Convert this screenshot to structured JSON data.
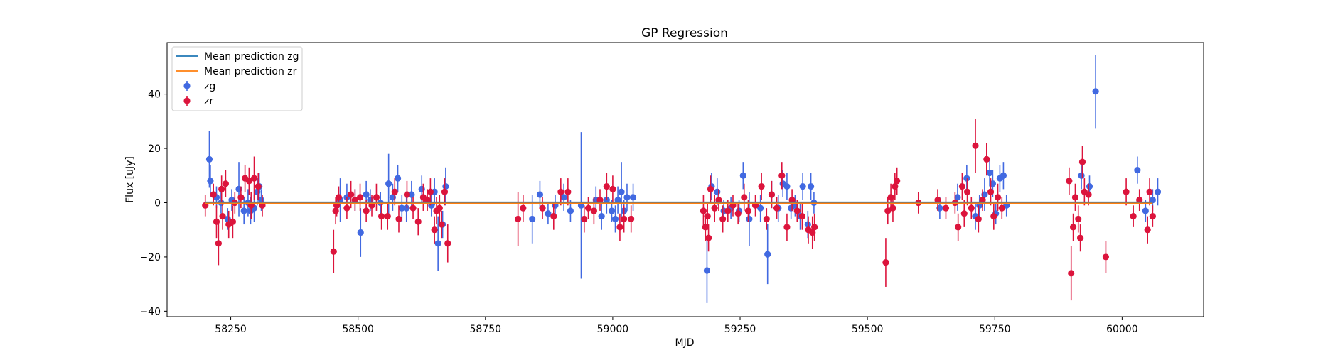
{
  "chart_data": {
    "type": "scatter",
    "title": "GP Regression",
    "xlabel": "MJD",
    "ylabel": "Flux [uJy]",
    "xlim": [
      58125,
      60160
    ],
    "ylim": [
      -42,
      59
    ],
    "xticks": [
      58250,
      58500,
      58750,
      59000,
      59250,
      59500,
      59750,
      60000
    ],
    "yticks": [
      -40,
      -20,
      0,
      20,
      40
    ],
    "grid": false,
    "legend": {
      "placement": "top-left",
      "entries": [
        {
          "label": "Mean prediction zg",
          "kind": "line",
          "color": "#1f77b4"
        },
        {
          "label": "Mean prediction zr",
          "kind": "line",
          "color": "#ff7f0e"
        },
        {
          "label": "zg",
          "kind": "errorbar",
          "color": "#4169e1"
        },
        {
          "label": "zr",
          "kind": "errorbar",
          "color": "#dc143c"
        }
      ]
    },
    "mean_lines": [
      {
        "name": "Mean prediction zg",
        "color": "#1f77b4",
        "x": [
          58200,
          60060
        ],
        "y": [
          0.2,
          0.2
        ]
      },
      {
        "name": "Mean prediction zr",
        "color": "#ff7f0e",
        "x": [
          58200,
          60060
        ],
        "y": [
          -0.2,
          -0.2
        ]
      }
    ],
    "series": [
      {
        "name": "zg",
        "color": "#4169e1",
        "points": [
          [
            58208,
            16,
            10.5
          ],
          [
            58210,
            8,
            6
          ],
          [
            58222,
            2,
            4
          ],
          [
            58231,
            0,
            4
          ],
          [
            58244,
            -6,
            4
          ],
          [
            58252,
            1,
            4
          ],
          [
            58266,
            5,
            10
          ],
          [
            58276,
            -3,
            5
          ],
          [
            58284,
            0,
            5
          ],
          [
            58289,
            -3,
            5
          ],
          [
            58296,
            -2,
            5
          ],
          [
            58302,
            4,
            5
          ],
          [
            58306,
            6,
            5
          ],
          [
            58310,
            1,
            4
          ],
          [
            58465,
            1,
            8
          ],
          [
            58478,
            2,
            5
          ],
          [
            58494,
            1,
            4
          ],
          [
            58505,
            -11,
            9
          ],
          [
            58516,
            3,
            5
          ],
          [
            58524,
            1,
            4
          ],
          [
            58544,
            0,
            4
          ],
          [
            58560,
            7,
            11
          ],
          [
            58568,
            2,
            5
          ],
          [
            58578,
            9,
            5
          ],
          [
            58586,
            -2,
            5
          ],
          [
            58595,
            -2,
            5
          ],
          [
            58605,
            3,
            5
          ],
          [
            58625,
            5,
            5
          ],
          [
            58644,
            -1,
            4
          ],
          [
            58650,
            4,
            5
          ],
          [
            58657,
            -15,
            10
          ],
          [
            58666,
            -8,
            5
          ],
          [
            58672,
            6,
            7
          ],
          [
            58842,
            -6,
            9
          ],
          [
            58857,
            3,
            5
          ],
          [
            58873,
            -4,
            4
          ],
          [
            58887,
            -1,
            4
          ],
          [
            58904,
            2,
            5
          ],
          [
            58917,
            -3,
            4
          ],
          [
            58938,
            -1,
            27
          ],
          [
            58967,
            1,
            5
          ],
          [
            58978,
            -5,
            5
          ],
          [
            58988,
            1,
            5
          ],
          [
            58998,
            -3,
            4
          ],
          [
            59005,
            -6,
            5
          ],
          [
            59010,
            1,
            5
          ],
          [
            59017,
            4,
            11
          ],
          [
            59022,
            -3,
            4
          ],
          [
            59028,
            2,
            5
          ],
          [
            59040,
            2,
            5
          ],
          [
            59185,
            -25,
            12
          ],
          [
            59194,
            6,
            5
          ],
          [
            59205,
            4,
            5
          ],
          [
            59218,
            -3,
            4
          ],
          [
            59232,
            -2,
            4
          ],
          [
            59248,
            -3,
            4
          ],
          [
            59256,
            10,
            5
          ],
          [
            59268,
            -6,
            10
          ],
          [
            59290,
            -2,
            5
          ],
          [
            59304,
            -19,
            11
          ],
          [
            59312,
            3,
            5
          ],
          [
            59325,
            -2,
            5
          ],
          [
            59334,
            7,
            5
          ],
          [
            59342,
            6,
            5
          ],
          [
            59350,
            -2,
            4
          ],
          [
            59358,
            -1,
            4
          ],
          [
            59368,
            -5,
            5
          ],
          [
            59373,
            6,
            5
          ],
          [
            59383,
            -8,
            5
          ],
          [
            59389,
            6,
            5
          ],
          [
            59395,
            0,
            4
          ],
          [
            59642,
            -2,
            4
          ],
          [
            59677,
            2,
            5
          ],
          [
            59695,
            9,
            5
          ],
          [
            59712,
            -5,
            5
          ],
          [
            59720,
            -1,
            4
          ],
          [
            59730,
            3,
            6
          ],
          [
            59740,
            11,
            5
          ],
          [
            59746,
            7,
            5
          ],
          [
            59752,
            -4,
            4
          ],
          [
            59760,
            9,
            5
          ],
          [
            59767,
            10,
            5
          ],
          [
            59773,
            -1,
            4
          ],
          [
            59920,
            10,
            5
          ],
          [
            59936,
            6,
            4
          ],
          [
            59948,
            41,
            13.5
          ],
          [
            60030,
            12,
            5
          ],
          [
            60046,
            -3,
            4
          ],
          [
            60060,
            1,
            4
          ],
          [
            60070,
            4,
            5
          ]
        ]
      },
      {
        "name": "zr",
        "color": "#dc143c",
        "points": [
          [
            58200,
            -1,
            4
          ],
          [
            58216,
            3,
            4
          ],
          [
            58222,
            -7,
            6
          ],
          [
            58226,
            -15,
            8
          ],
          [
            58232,
            5,
            5
          ],
          [
            58234,
            -5,
            5
          ],
          [
            58240,
            7,
            5
          ],
          [
            58246,
            -8,
            5
          ],
          [
            58254,
            -7,
            6
          ],
          [
            58258,
            0,
            4
          ],
          [
            58270,
            2,
            4
          ],
          [
            58278,
            9,
            5
          ],
          [
            58286,
            8,
            5
          ],
          [
            58290,
            -1,
            5
          ],
          [
            58296,
            9,
            8
          ],
          [
            58304,
            6,
            5
          ],
          [
            58312,
            -1,
            4
          ],
          [
            58452,
            -18,
            8
          ],
          [
            58456,
            -3,
            5
          ],
          [
            58458,
            -1,
            4
          ],
          [
            58462,
            2,
            4
          ],
          [
            58478,
            -2,
            4
          ],
          [
            58486,
            3,
            5
          ],
          [
            58494,
            1,
            4
          ],
          [
            58504,
            2,
            5
          ],
          [
            58516,
            -3,
            4
          ],
          [
            58527,
            -1,
            4
          ],
          [
            58536,
            2,
            5
          ],
          [
            58546,
            -5,
            5
          ],
          [
            58558,
            -5,
            5
          ],
          [
            58572,
            4,
            5
          ],
          [
            58580,
            -6,
            5
          ],
          [
            58596,
            3,
            5
          ],
          [
            58608,
            -2,
            4
          ],
          [
            58618,
            -7,
            5
          ],
          [
            58628,
            2,
            5
          ],
          [
            58636,
            1,
            4
          ],
          [
            58642,
            4,
            5
          ],
          [
            58650,
            -10,
            5
          ],
          [
            58654,
            -3,
            5
          ],
          [
            58660,
            -2,
            5
          ],
          [
            58664,
            -8,
            5
          ],
          [
            58670,
            4,
            5
          ],
          [
            58676,
            -15,
            7
          ],
          [
            58814,
            -6,
            10
          ],
          [
            58824,
            -2,
            5
          ],
          [
            58862,
            -2,
            4
          ],
          [
            58884,
            -5,
            5
          ],
          [
            58898,
            4,
            5
          ],
          [
            58912,
            4,
            5
          ],
          [
            58944,
            -6,
            5
          ],
          [
            58952,
            -2,
            4
          ],
          [
            58963,
            -3,
            5
          ],
          [
            58975,
            1,
            4
          ],
          [
            58988,
            6,
            5
          ],
          [
            59000,
            5,
            5
          ],
          [
            59014,
            -9,
            5
          ],
          [
            59022,
            -6,
            5
          ],
          [
            59036,
            -6,
            5
          ],
          [
            59178,
            -3,
            6
          ],
          [
            59182,
            -9,
            5
          ],
          [
            59186,
            -5,
            5
          ],
          [
            59188,
            -13,
            5
          ],
          [
            59192,
            5,
            5
          ],
          [
            59200,
            -2,
            5
          ],
          [
            59208,
            1,
            4
          ],
          [
            59216,
            -6,
            5
          ],
          [
            59226,
            -3,
            4
          ],
          [
            59236,
            -1,
            4
          ],
          [
            59246,
            -4,
            4
          ],
          [
            59258,
            2,
            5
          ],
          [
            59266,
            -3,
            4
          ],
          [
            59280,
            -1,
            4
          ],
          [
            59292,
            6,
            5
          ],
          [
            59302,
            -6,
            4
          ],
          [
            59312,
            3,
            5
          ],
          [
            59322,
            -2,
            4
          ],
          [
            59332,
            10,
            5
          ],
          [
            59342,
            -9,
            5
          ],
          [
            59352,
            1,
            4
          ],
          [
            59362,
            -3,
            4
          ],
          [
            59372,
            -5,
            5
          ],
          [
            59384,
            -10,
            5
          ],
          [
            59392,
            -11,
            6
          ],
          [
            59396,
            -9,
            5
          ],
          [
            59536,
            -22,
            9
          ],
          [
            59540,
            -3,
            5
          ],
          [
            59546,
            2,
            5
          ],
          [
            59550,
            -2,
            5
          ],
          [
            59554,
            6,
            5
          ],
          [
            59558,
            8,
            5
          ],
          [
            59600,
            0,
            4
          ],
          [
            59638,
            1,
            4
          ],
          [
            59654,
            -2,
            4
          ],
          [
            59672,
            0,
            4
          ],
          [
            59678,
            -9,
            5
          ],
          [
            59686,
            6,
            5
          ],
          [
            59690,
            -4,
            5
          ],
          [
            59696,
            4,
            5
          ],
          [
            59704,
            -2,
            4
          ],
          [
            59712,
            21,
            10
          ],
          [
            59718,
            -6,
            5
          ],
          [
            59726,
            1,
            4
          ],
          [
            59734,
            16,
            6
          ],
          [
            59742,
            4,
            5
          ],
          [
            59748,
            -5,
            5
          ],
          [
            59756,
            2,
            5
          ],
          [
            59764,
            -2,
            4
          ],
          [
            59896,
            8,
            5
          ],
          [
            59900,
            -26,
            10
          ],
          [
            59904,
            -9,
            5
          ],
          [
            59908,
            2,
            5
          ],
          [
            59914,
            -6,
            5
          ],
          [
            59918,
            -13,
            5
          ],
          [
            59922,
            15,
            6
          ],
          [
            59926,
            4,
            5
          ],
          [
            59934,
            3,
            4
          ],
          [
            59968,
            -20,
            6
          ],
          [
            60008,
            4,
            5
          ],
          [
            60022,
            -5,
            4
          ],
          [
            60034,
            1,
            4
          ],
          [
            60050,
            -10,
            5
          ],
          [
            60054,
            4,
            5
          ],
          [
            60060,
            -5,
            4
          ]
        ]
      }
    ]
  }
}
